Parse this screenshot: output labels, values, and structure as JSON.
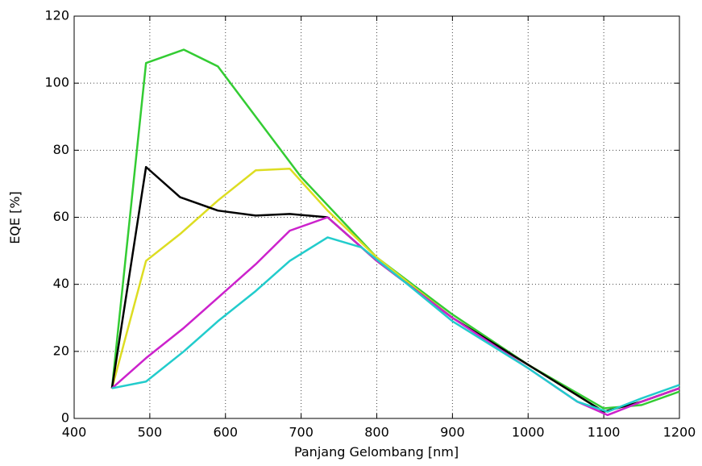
{
  "chart_data": {
    "type": "line",
    "xlabel": "Panjang Gelombang [nm]",
    "ylabel": "EQE [%]",
    "xlim": [
      400,
      1200
    ],
    "xticks": [
      400,
      500,
      600,
      700,
      800,
      900,
      1000,
      1100,
      1200
    ],
    "ylim": [
      0,
      120
    ],
    "yticks": [
      0,
      20,
      40,
      60,
      80,
      100,
      120
    ],
    "grid": true,
    "series": [
      {
        "color": "#33cc33",
        "x": [
          450,
          495,
          545,
          590,
          700,
          800,
          900,
          1000,
          1100,
          1150,
          1200
        ],
        "values": [
          9,
          106,
          110,
          105,
          72,
          48,
          31,
          16,
          3,
          4,
          8
        ]
      },
      {
        "color": "#dddd22",
        "x": [
          450,
          495,
          540,
          590,
          640,
          685,
          735,
          800,
          900,
          1000,
          1100,
          1150,
          1200
        ],
        "values": [
          9,
          47,
          55,
          65,
          74,
          74.5,
          62,
          48,
          30,
          16,
          2,
          5,
          9
        ]
      },
      {
        "color": "#000000",
        "x": [
          450,
          495,
          540,
          590,
          640,
          685,
          735,
          800,
          900,
          1000,
          1100,
          1150,
          1200
        ],
        "values": [
          9,
          75,
          66,
          62,
          60.5,
          61,
          60,
          47,
          30,
          16,
          2,
          5,
          9
        ]
      },
      {
        "color": "#cc22cc",
        "x": [
          450,
          495,
          545,
          590,
          640,
          685,
          735,
          800,
          900,
          1000,
          1065,
          1105,
          1150,
          1200
        ],
        "values": [
          9,
          18,
          27,
          36,
          46,
          56,
          60,
          47,
          30,
          15,
          5,
          1,
          5,
          9
        ]
      },
      {
        "color": "#22cccc",
        "x": [
          450,
          495,
          545,
          590,
          640,
          685,
          735,
          780,
          830,
          900,
          1000,
          1065,
          1105,
          1150,
          1200
        ],
        "values": [
          9,
          11,
          20,
          29,
          38,
          47,
          54,
          51,
          42,
          29,
          15,
          5,
          2,
          6,
          10
        ]
      }
    ]
  }
}
